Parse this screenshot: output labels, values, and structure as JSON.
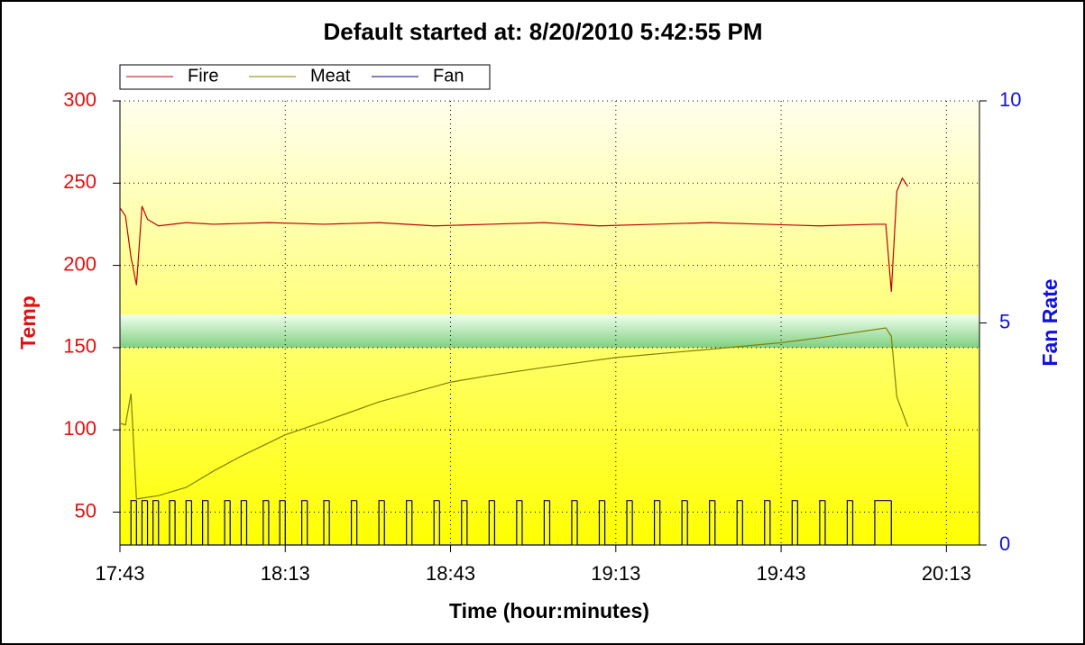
{
  "chart_data": {
    "type": "line",
    "title": "Default started at: 8/20/2010 5:42:55 PM",
    "x_label": "Time (hour:minutes)",
    "y_label": "Temp",
    "y2_label": "Fan Rate",
    "xlim": [
      "17:43",
      "20:19"
    ],
    "xticks": [
      "17:43",
      "18:13",
      "18:43",
      "19:13",
      "19:43",
      "20:13"
    ],
    "ylim": [
      30,
      300
    ],
    "yticks": [
      50,
      100,
      150,
      200,
      250,
      300
    ],
    "y2lim": [
      0,
      10
    ],
    "y2ticks": [
      0,
      5,
      10
    ],
    "grid": true,
    "highlight_range": [
      150,
      170
    ],
    "series": [
      {
        "name": "Fire",
        "color": "#c00000",
        "axis": "y",
        "x": [
          "17:43",
          "17:44",
          "17:45",
          "17:46",
          "17:47",
          "17:48",
          "17:50",
          "17:55",
          "18:00",
          "18:10",
          "18:20",
          "18:30",
          "18:40",
          "18:50",
          "19:00",
          "19:10",
          "19:20",
          "19:30",
          "19:40",
          "19:50",
          "20:00",
          "20:02",
          "20:03",
          "20:04",
          "20:05",
          "20:06"
        ],
        "values": [
          235,
          230,
          205,
          188,
          236,
          228,
          224,
          226,
          225,
          226,
          225,
          226,
          224,
          225,
          226,
          224,
          225,
          226,
          225,
          224,
          225,
          225,
          184,
          245,
          253,
          248
        ]
      },
      {
        "name": "Meat",
        "color": "#808000",
        "axis": "y",
        "x": [
          "17:43",
          "17:44",
          "17:45",
          "17:46",
          "17:50",
          "17:55",
          "18:00",
          "18:05",
          "18:13",
          "18:20",
          "18:30",
          "18:43",
          "18:50",
          "19:00",
          "19:13",
          "19:30",
          "19:43",
          "19:50",
          "20:02",
          "20:03",
          "20:04",
          "20:06"
        ],
        "values": [
          104,
          103,
          122,
          58,
          60,
          65,
          75,
          84,
          97,
          105,
          117,
          129,
          133,
          138,
          144,
          149,
          153,
          156,
          162,
          157,
          120,
          102
        ]
      },
      {
        "name": "Fan",
        "color": "#000080",
        "axis": "y2",
        "step": true,
        "x": [
          "17:43",
          "17:45",
          "17:46",
          "17:47",
          "17:48",
          "17:49",
          "17:50",
          "17:52",
          "17:53",
          "17:55",
          "17:56",
          "17:58",
          "17:59",
          "18:02",
          "18:03",
          "18:05",
          "18:06",
          "18:09",
          "18:10",
          "18:12",
          "18:13",
          "18:16",
          "18:17",
          "18:20",
          "18:21",
          "18:25",
          "18:26",
          "18:30",
          "18:31",
          "18:35",
          "18:36",
          "18:40",
          "18:41",
          "18:45",
          "18:46",
          "18:50",
          "18:51",
          "18:55",
          "18:56",
          "19:00",
          "19:01",
          "19:05",
          "19:06",
          "19:10",
          "19:11",
          "19:15",
          "19:16",
          "19:20",
          "19:21",
          "19:25",
          "19:26",
          "19:30",
          "19:31",
          "19:35",
          "19:36",
          "19:40",
          "19:41",
          "19:45",
          "19:46",
          "19:50",
          "19:51",
          "19:55",
          "19:56",
          "20:00",
          "20:03"
        ],
        "values": [
          0,
          1,
          0,
          1,
          0,
          1,
          0,
          1,
          0,
          1,
          0,
          1,
          0,
          1,
          0,
          1,
          0,
          1,
          0,
          1,
          0,
          1,
          0,
          1,
          0,
          1,
          0,
          1,
          0,
          1,
          0,
          1,
          0,
          1,
          0,
          1,
          0,
          1,
          0,
          1,
          0,
          1,
          0,
          1,
          0,
          1,
          0,
          1,
          0,
          1,
          0,
          1,
          0,
          1,
          0,
          1,
          0,
          1,
          0,
          1,
          0,
          1,
          0,
          1,
          0
        ]
      }
    ]
  }
}
